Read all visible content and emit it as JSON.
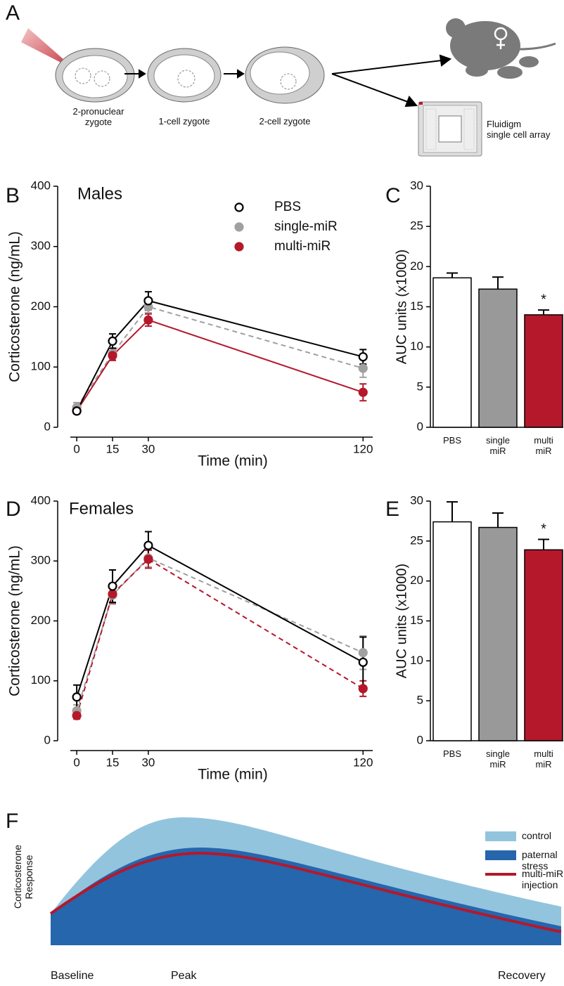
{
  "panel_labels": [
    "A",
    "B",
    "C",
    "D",
    "E",
    "F"
  ],
  "diagram": {
    "stages": [
      "2-pronuclear\nzygote",
      "1-cell zygote",
      "2-cell zygote"
    ],
    "array_label": "Fluidigm\nsingle cell array"
  },
  "chart_data": [
    {
      "type": "line",
      "title": "Males",
      "xlabel": "Time (min)",
      "ylabel": "Corticosterone (ng/mL)",
      "x": [
        0,
        15,
        30,
        120
      ],
      "xlim": [
        -8,
        127
      ],
      "xticks": [
        0,
        15,
        30,
        120
      ],
      "ylim": [
        0,
        400
      ],
      "yticks": [
        0,
        100,
        200,
        300,
        400
      ],
      "legend": "upper right",
      "series": [
        {
          "name": "PBS",
          "color": "#000000",
          "marker": "open",
          "dashed": false,
          "values": [
            27,
            143,
            210,
            117
          ],
          "errors": [
            4,
            12,
            15,
            12
          ]
        },
        {
          "name": "single-miR",
          "color": "#a0a0a0",
          "marker": "filled",
          "dashed": true,
          "values": [
            33,
            122,
            200,
            98
          ],
          "errors": [
            8,
            10,
            10,
            15
          ]
        },
        {
          "name": "multi-miR",
          "color": "#b5182b",
          "marker": "filled",
          "dashed": false,
          "values": [
            27,
            119,
            178,
            58
          ],
          "errors": [
            5,
            8,
            10,
            14
          ]
        }
      ]
    },
    {
      "type": "bar",
      "ylabel": "AUC units (x1000)",
      "categories": [
        "PBS",
        "single\nmiR",
        "multi\nmiR"
      ],
      "values": [
        18.6,
        17.2,
        14.0
      ],
      "errors": [
        0.6,
        1.5,
        0.6
      ],
      "colors": [
        "#ffffff",
        "#999999",
        "#b5182b"
      ],
      "ylim": [
        0,
        30
      ],
      "yticks": [
        0,
        5,
        10,
        15,
        20,
        25,
        30
      ],
      "annotations": [
        {
          "text": "*",
          "x": "multi\nmiR"
        }
      ]
    },
    {
      "type": "line",
      "title": "Females",
      "xlabel": "Time (min)",
      "ylabel": "Corticosterone (ng/mL)",
      "x": [
        0,
        15,
        30,
        120
      ],
      "xlim": [
        -8,
        127
      ],
      "xticks": [
        0,
        15,
        30,
        120
      ],
      "ylim": [
        0,
        400
      ],
      "yticks": [
        0,
        100,
        200,
        300,
        400
      ],
      "series": [
        {
          "color": "#000000",
          "marker": "open",
          "dashed": false,
          "values": [
            73,
            258,
            326,
            131
          ],
          "errors": [
            20,
            27,
            23,
            42
          ]
        },
        {
          "color": "#a0a0a0",
          "marker": "filled",
          "dashed": true,
          "values": [
            50,
            243,
            305,
            147
          ],
          "errors": [
            10,
            15,
            15,
            28
          ]
        },
        {
          "color": "#b5182b",
          "marker": "filled",
          "dashed": true,
          "values": [
            42,
            245,
            303,
            87
          ],
          "errors": [
            6,
            15,
            15,
            13
          ]
        }
      ]
    },
    {
      "type": "bar",
      "ylabel": "AUC units (x1000)",
      "categories": [
        "PBS",
        "single\nmiR",
        "multi\nmiR"
      ],
      "values": [
        27.4,
        26.7,
        23.9
      ],
      "errors": [
        2.5,
        1.8,
        1.3
      ],
      "colors": [
        "#ffffff",
        "#999999",
        "#b5182b"
      ],
      "ylim": [
        0,
        30
      ],
      "yticks": [
        0,
        5,
        10,
        15,
        20,
        25,
        30
      ],
      "annotations": [
        {
          "text": "*",
          "x": "multi\nmiR"
        }
      ]
    }
  ],
  "schematic": {
    "ylabel": "Corticosterone\nResponse",
    "legend": [
      "control",
      "paternal stress",
      "multi-miR injection"
    ],
    "x_labels": [
      "Baseline",
      "Peak",
      "Recovery"
    ]
  }
}
